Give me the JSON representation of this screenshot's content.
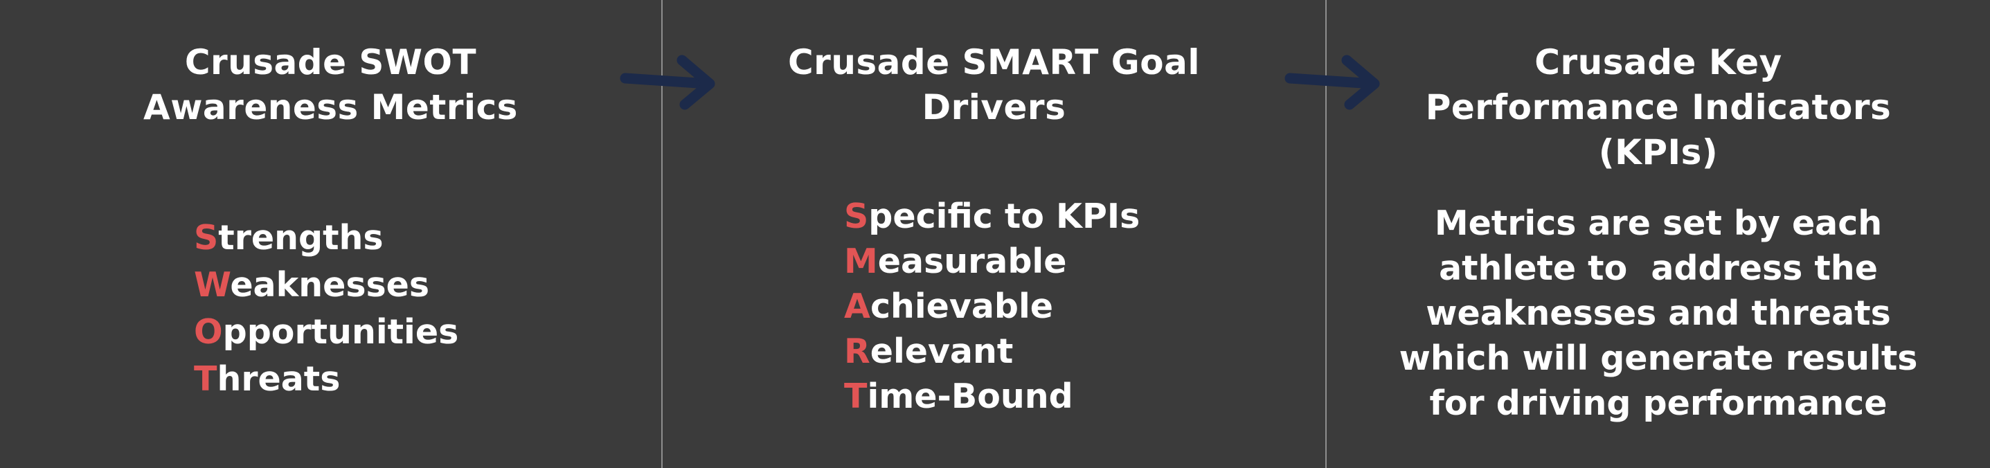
{
  "columns": [
    {
      "title_lines": [
        "Crusade SWOT",
        "Awareness Metrics"
      ],
      "items": [
        {
          "initial": "S",
          "rest": "trengths"
        },
        {
          "initial": "W",
          "rest": "eaknesses"
        },
        {
          "initial": "O",
          "rest": "pportunities"
        },
        {
          "initial": "T",
          "rest": "hreats"
        }
      ]
    },
    {
      "title_lines": [
        "Crusade SMART Goal",
        "Drivers"
      ],
      "items": [
        {
          "initial": "S",
          "rest": "pecific to KPIs"
        },
        {
          "initial": "M",
          "rest": "easurable"
        },
        {
          "initial": "A",
          "rest": "chievable"
        },
        {
          "initial": "R",
          "rest": "elevant"
        },
        {
          "initial": "T",
          "rest": "ime-Bound"
        }
      ]
    },
    {
      "title_lines": [
        "Crusade Key",
        "Performance Indicators",
        "(KPIs)"
      ],
      "body_lines": [
        "Metrics are set by each",
        "athlete to  address the",
        "weaknesses and threats",
        "which will generate results",
        "for driving performance"
      ]
    }
  ],
  "colors": {
    "background": "#3b3b3b",
    "text": "#ffffff",
    "initial_highlight": "#e25555",
    "arrow": "#1c2a4a",
    "divider": "#8e8e8e"
  },
  "icons": [
    "right-arrow-icon",
    "right-arrow-icon"
  ]
}
